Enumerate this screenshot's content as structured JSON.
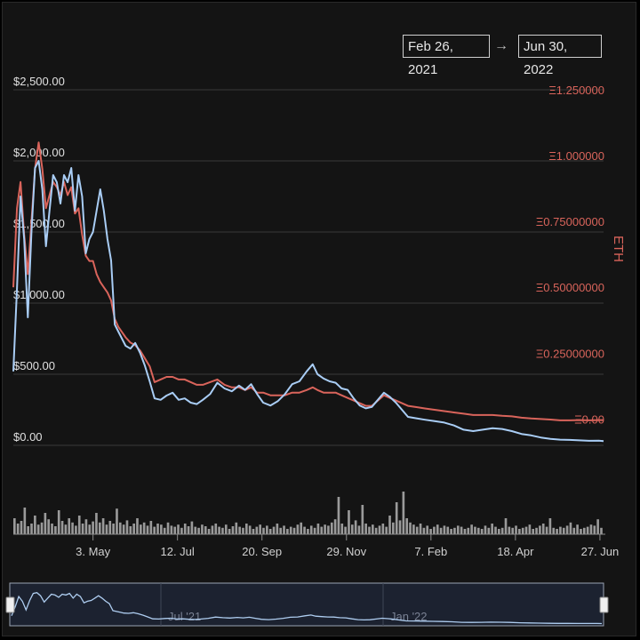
{
  "range": {
    "from": "Feb 26, 2021",
    "arrow": "→",
    "to": "Jun 30, 2022"
  },
  "colors": {
    "usd_series": "#a9cdf5",
    "eth_series": "#d9645b",
    "eth_axis": "#d9645b",
    "usd_axis": "#e0e0e0",
    "volume": "#9a9a9a",
    "grid": "#3a3a3a"
  },
  "chart_data": {
    "type": "line",
    "x_label": "",
    "y_label": "",
    "y_right_label": "ETH",
    "y_left": {
      "range": [
        0,
        2500
      ],
      "ticks": [
        {
          "value": 0,
          "label": "$0.00"
        },
        {
          "value": 500,
          "label": "$500.00"
        },
        {
          "value": 1000,
          "label": "$1,000.00"
        },
        {
          "value": 1500,
          "label": "$1,500.00"
        },
        {
          "value": 2000,
          "label": "$2,000.00"
        },
        {
          "value": 2500,
          "label": "$2,500.00"
        }
      ]
    },
    "y_right": {
      "range": [
        -0.1,
        1.25
      ],
      "ticks": [
        {
          "value": 0,
          "label": "Ξ0.00"
        },
        {
          "value": 0.25,
          "label": "Ξ0.25000000"
        },
        {
          "value": 0.5,
          "label": "Ξ0.50000000"
        },
        {
          "value": 0.75,
          "label": "Ξ0.75000000"
        },
        {
          "value": 1.0,
          "label": "Ξ1.000000"
        },
        {
          "value": 1.25,
          "label": "Ξ1.250000"
        }
      ]
    },
    "x_ticks": [
      {
        "date": "2021-05-03",
        "label": "3. May"
      },
      {
        "date": "2021-07-12",
        "label": "12. Jul"
      },
      {
        "date": "2021-09-20",
        "label": "20. Sep"
      },
      {
        "date": "2021-11-29",
        "label": "29. Nov"
      },
      {
        "date": "2022-02-07",
        "label": "7. Feb"
      },
      {
        "date": "2022-04-18",
        "label": "18. Apr"
      },
      {
        "date": "2022-06-27",
        "label": "27. Jun"
      }
    ],
    "x_range": [
      "2021-02-26",
      "2022-06-30"
    ],
    "series": [
      {
        "axis": "left",
        "points": [
          [
            "2021-02-26",
            520
          ],
          [
            "2021-03-01",
            1100
          ],
          [
            "2021-03-04",
            1750
          ],
          [
            "2021-03-07",
            1450
          ],
          [
            "2021-03-10",
            900
          ],
          [
            "2021-03-13",
            1500
          ],
          [
            "2021-03-16",
            1950
          ],
          [
            "2021-03-19",
            2000
          ],
          [
            "2021-03-22",
            1800
          ],
          [
            "2021-03-25",
            1400
          ],
          [
            "2021-03-28",
            1650
          ],
          [
            "2021-03-31",
            1900
          ],
          [
            "2021-04-03",
            1850
          ],
          [
            "2021-04-06",
            1700
          ],
          [
            "2021-04-09",
            1900
          ],
          [
            "2021-04-12",
            1850
          ],
          [
            "2021-04-15",
            1950
          ],
          [
            "2021-04-18",
            1650
          ],
          [
            "2021-04-21",
            1900
          ],
          [
            "2021-04-24",
            1750
          ],
          [
            "2021-04-27",
            1350
          ],
          [
            "2021-04-30",
            1450
          ],
          [
            "2021-05-03",
            1500
          ],
          [
            "2021-05-06",
            1650
          ],
          [
            "2021-05-09",
            1800
          ],
          [
            "2021-05-12",
            1650
          ],
          [
            "2021-05-15",
            1450
          ],
          [
            "2021-05-18",
            1300
          ],
          [
            "2021-05-21",
            850
          ],
          [
            "2021-05-24",
            800
          ],
          [
            "2021-05-27",
            750
          ],
          [
            "2021-05-30",
            700
          ],
          [
            "2021-06-03",
            680
          ],
          [
            "2021-06-07",
            720
          ],
          [
            "2021-06-11",
            650
          ],
          [
            "2021-06-15",
            560
          ],
          [
            "2021-06-19",
            450
          ],
          [
            "2021-06-23",
            330
          ],
          [
            "2021-06-28",
            320
          ],
          [
            "2021-07-03",
            350
          ],
          [
            "2021-07-08",
            370
          ],
          [
            "2021-07-13",
            320
          ],
          [
            "2021-07-18",
            330
          ],
          [
            "2021-07-23",
            300
          ],
          [
            "2021-07-28",
            290
          ],
          [
            "2021-08-02",
            320
          ],
          [
            "2021-08-08",
            360
          ],
          [
            "2021-08-14",
            440
          ],
          [
            "2021-08-20",
            400
          ],
          [
            "2021-08-26",
            380
          ],
          [
            "2021-09-01",
            420
          ],
          [
            "2021-09-06",
            390
          ],
          [
            "2021-09-11",
            430
          ],
          [
            "2021-09-16",
            360
          ],
          [
            "2021-09-21",
            300
          ],
          [
            "2021-09-27",
            280
          ],
          [
            "2021-10-03",
            310
          ],
          [
            "2021-10-09",
            360
          ],
          [
            "2021-10-15",
            430
          ],
          [
            "2021-10-21",
            450
          ],
          [
            "2021-10-27",
            520
          ],
          [
            "2021-11-01",
            570
          ],
          [
            "2021-11-05",
            500
          ],
          [
            "2021-11-10",
            470
          ],
          [
            "2021-11-15",
            450
          ],
          [
            "2021-11-20",
            440
          ],
          [
            "2021-11-25",
            400
          ],
          [
            "2021-11-30",
            390
          ],
          [
            "2021-12-05",
            330
          ],
          [
            "2021-12-10",
            280
          ],
          [
            "2021-12-15",
            260
          ],
          [
            "2021-12-20",
            270
          ],
          [
            "2021-12-25",
            320
          ],
          [
            "2021-12-30",
            370
          ],
          [
            "2022-01-04",
            340
          ],
          [
            "2022-01-09",
            300
          ],
          [
            "2022-01-14",
            250
          ],
          [
            "2022-01-19",
            200
          ],
          [
            "2022-01-26",
            190
          ],
          [
            "2022-02-02",
            180
          ],
          [
            "2022-02-10",
            170
          ],
          [
            "2022-02-18",
            160
          ],
          [
            "2022-02-26",
            140
          ],
          [
            "2022-03-06",
            110
          ],
          [
            "2022-03-14",
            100
          ],
          [
            "2022-03-22",
            110
          ],
          [
            "2022-03-30",
            120
          ],
          [
            "2022-04-07",
            115
          ],
          [
            "2022-04-15",
            100
          ],
          [
            "2022-04-23",
            80
          ],
          [
            "2022-05-01",
            70
          ],
          [
            "2022-05-09",
            55
          ],
          [
            "2022-05-17",
            45
          ],
          [
            "2022-05-25",
            40
          ],
          [
            "2022-06-02",
            38
          ],
          [
            "2022-06-10",
            35
          ],
          [
            "2022-06-18",
            32
          ],
          [
            "2022-06-26",
            33
          ],
          [
            "2022-06-30",
            30
          ]
        ]
      },
      {
        "axis": "right",
        "points": [
          [
            "2021-02-26",
            0.5
          ],
          [
            "2021-03-01",
            0.8
          ],
          [
            "2021-03-04",
            0.9
          ],
          [
            "2021-03-07",
            0.7
          ],
          [
            "2021-03-10",
            0.55
          ],
          [
            "2021-03-13",
            0.75
          ],
          [
            "2021-03-16",
            0.95
          ],
          [
            "2021-03-19",
            1.05
          ],
          [
            "2021-03-22",
            0.95
          ],
          [
            "2021-03-25",
            0.8
          ],
          [
            "2021-03-28",
            0.85
          ],
          [
            "2021-03-31",
            0.9
          ],
          [
            "2021-04-03",
            0.88
          ],
          [
            "2021-04-06",
            0.85
          ],
          [
            "2021-04-09",
            0.9
          ],
          [
            "2021-04-12",
            0.85
          ],
          [
            "2021-04-15",
            0.88
          ],
          [
            "2021-04-18",
            0.78
          ],
          [
            "2021-04-21",
            0.8
          ],
          [
            "2021-04-24",
            0.7
          ],
          [
            "2021-04-27",
            0.62
          ],
          [
            "2021-04-30",
            0.6
          ],
          [
            "2021-05-03",
            0.6
          ],
          [
            "2021-05-06",
            0.55
          ],
          [
            "2021-05-09",
            0.52
          ],
          [
            "2021-05-12",
            0.5
          ],
          [
            "2021-05-15",
            0.48
          ],
          [
            "2021-05-18",
            0.45
          ],
          [
            "2021-05-21",
            0.38
          ],
          [
            "2021-05-24",
            0.35
          ],
          [
            "2021-05-27",
            0.33
          ],
          [
            "2021-05-30",
            0.31
          ],
          [
            "2021-06-03",
            0.29
          ],
          [
            "2021-06-07",
            0.28
          ],
          [
            "2021-06-11",
            0.26
          ],
          [
            "2021-06-15",
            0.23
          ],
          [
            "2021-06-19",
            0.2
          ],
          [
            "2021-06-23",
            0.14
          ],
          [
            "2021-06-28",
            0.15
          ],
          [
            "2021-07-03",
            0.16
          ],
          [
            "2021-07-08",
            0.16
          ],
          [
            "2021-07-13",
            0.15
          ],
          [
            "2021-07-18",
            0.15
          ],
          [
            "2021-07-23",
            0.14
          ],
          [
            "2021-07-28",
            0.13
          ],
          [
            "2021-08-02",
            0.13
          ],
          [
            "2021-08-08",
            0.14
          ],
          [
            "2021-08-14",
            0.15
          ],
          [
            "2021-08-20",
            0.13
          ],
          [
            "2021-08-26",
            0.12
          ],
          [
            "2021-09-01",
            0.12
          ],
          [
            "2021-09-06",
            0.11
          ],
          [
            "2021-09-11",
            0.12
          ],
          [
            "2021-09-16",
            0.1
          ],
          [
            "2021-09-21",
            0.1
          ],
          [
            "2021-09-27",
            0.09
          ],
          [
            "2021-10-03",
            0.09
          ],
          [
            "2021-10-09",
            0.09
          ],
          [
            "2021-10-15",
            0.1
          ],
          [
            "2021-10-21",
            0.1
          ],
          [
            "2021-10-27",
            0.11
          ],
          [
            "2021-11-01",
            0.12
          ],
          [
            "2021-11-05",
            0.11
          ],
          [
            "2021-11-10",
            0.1
          ],
          [
            "2021-11-15",
            0.1
          ],
          [
            "2021-11-20",
            0.1
          ],
          [
            "2021-11-25",
            0.09
          ],
          [
            "2021-11-30",
            0.08
          ],
          [
            "2021-12-05",
            0.07
          ],
          [
            "2021-12-10",
            0.06
          ],
          [
            "2021-12-15",
            0.05
          ],
          [
            "2021-12-20",
            0.05
          ],
          [
            "2021-12-25",
            0.07
          ],
          [
            "2021-12-30",
            0.09
          ],
          [
            "2022-01-04",
            0.08
          ],
          [
            "2022-01-09",
            0.07
          ],
          [
            "2022-01-14",
            0.06
          ],
          [
            "2022-01-19",
            0.05
          ],
          [
            "2022-01-26",
            0.045
          ],
          [
            "2022-02-02",
            0.04
          ],
          [
            "2022-02-10",
            0.035
          ],
          [
            "2022-02-18",
            0.03
          ],
          [
            "2022-02-26",
            0.025
          ],
          [
            "2022-03-06",
            0.02
          ],
          [
            "2022-03-14",
            0.015
          ],
          [
            "2022-03-22",
            0.015
          ],
          [
            "2022-03-30",
            0.015
          ],
          [
            "2022-04-07",
            0.012
          ],
          [
            "2022-04-15",
            0.01
          ],
          [
            "2022-04-23",
            0.005
          ],
          [
            "2022-05-01",
            0.002
          ],
          [
            "2022-05-09",
            0.0
          ],
          [
            "2022-05-17",
            -0.002
          ],
          [
            "2022-05-25",
            -0.005
          ],
          [
            "2022-06-02",
            -0.005
          ],
          [
            "2022-06-10",
            -0.004
          ],
          [
            "2022-06-18",
            -0.005
          ],
          [
            "2022-06-26",
            -0.004
          ],
          [
            "2022-06-30",
            -0.004
          ]
        ]
      }
    ],
    "volume": {
      "values": [
        30,
        20,
        25,
        50,
        15,
        20,
        35,
        18,
        22,
        40,
        28,
        20,
        15,
        45,
        25,
        18,
        30,
        22,
        16,
        35,
        20,
        28,
        18,
        24,
        40,
        22,
        30,
        18,
        25,
        20,
        48,
        22,
        18,
        26,
        15,
        20,
        30,
        18,
        22,
        16,
        25,
        14,
        20,
        18,
        12,
        22,
        16,
        14,
        18,
        12,
        20,
        15,
        24,
        14,
        12,
        18,
        15,
        10,
        16,
        20,
        14,
        12,
        18,
        10,
        15,
        22,
        14,
        12,
        20,
        16,
        10,
        14,
        18,
        12,
        16,
        10,
        14,
        20,
        12,
        16,
        10,
        14,
        12,
        18,
        22,
        14,
        10,
        16,
        12,
        20,
        14,
        18,
        16,
        22,
        28,
        70,
        20,
        14,
        45,
        18,
        26,
        16,
        55,
        20,
        14,
        18,
        12,
        16,
        20,
        14,
        35,
        22,
        60,
        26,
        80,
        30,
        22,
        18,
        14,
        20,
        12,
        16,
        10,
        14,
        18,
        12,
        16,
        14,
        10,
        12,
        16,
        14,
        10,
        12,
        18,
        14,
        12,
        10,
        16,
        12,
        20,
        14,
        10,
        12,
        30,
        14,
        12,
        16,
        10,
        12,
        14,
        18,
        10,
        12,
        16,
        20,
        14,
        30,
        12,
        10,
        14,
        12,
        16,
        22,
        12,
        18,
        10,
        12,
        14,
        18,
        16,
        28,
        12
      ]
    }
  }
}
